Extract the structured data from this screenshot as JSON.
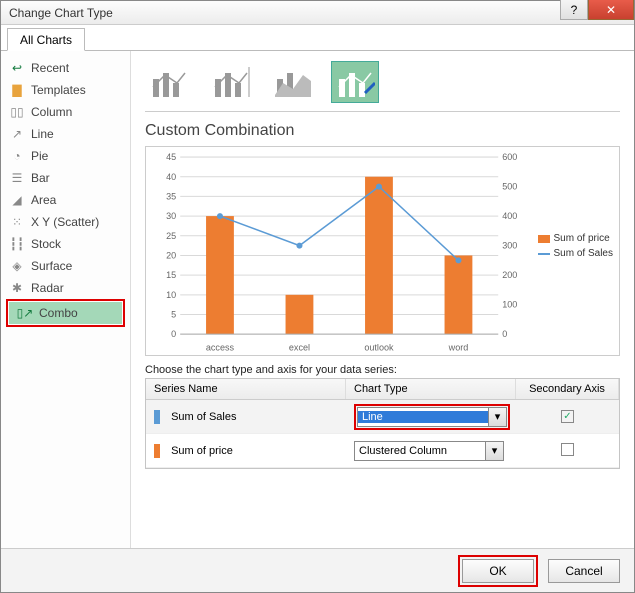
{
  "window": {
    "title": "Change Chart Type"
  },
  "tabs": {
    "allCharts": "All Charts"
  },
  "sidebar": {
    "items": [
      {
        "label": "Recent"
      },
      {
        "label": "Templates"
      },
      {
        "label": "Column"
      },
      {
        "label": "Line"
      },
      {
        "label": "Pie"
      },
      {
        "label": "Bar"
      },
      {
        "label": "Area"
      },
      {
        "label": "X Y (Scatter)"
      },
      {
        "label": "Stock"
      },
      {
        "label": "Surface"
      },
      {
        "label": "Radar"
      },
      {
        "label": "Combo"
      }
    ],
    "selected_index": 11,
    "highlighted_index": 11
  },
  "combo_thumbs": {
    "count": 4,
    "selected_index": 3
  },
  "section_title": "Custom Combination",
  "chart": {
    "type": "combo",
    "categories": [
      "access",
      "excel",
      "outlook",
      "word"
    ],
    "bar_series": {
      "name": "Sum of price",
      "values": [
        30,
        10,
        40,
        20
      ],
      "color": "#ed7d31"
    },
    "line_series": {
      "name": "Sum of Sales",
      "values": [
        400,
        300,
        500,
        250
      ],
      "color": "#5b9bd5",
      "marker": "circle"
    },
    "y_left": {
      "min": 0,
      "max": 45,
      "step": 5
    },
    "y_right": {
      "min": 0,
      "max": 600,
      "step": 100
    },
    "grid_color": "#d9d9d9",
    "background_color": "#ffffff",
    "axis_fontsize": 9,
    "category_fontsize": 9
  },
  "legend": {
    "items": [
      {
        "label": "Sum of price",
        "color": "#ed7d31",
        "kind": "bar"
      },
      {
        "label": "Sum of Sales",
        "color": "#5b9bd5",
        "kind": "line"
      }
    ]
  },
  "series_section": {
    "caption": "Choose the chart type and axis for your data series:",
    "headers": {
      "name": "Series Name",
      "type": "Chart Type",
      "secondary": "Secondary Axis"
    },
    "rows": [
      {
        "swatch": "#5b9bd5",
        "name": "Sum of Sales",
        "chart_type": "Line",
        "secondary_checked": true,
        "type_highlighted": true
      },
      {
        "swatch": "#ed7d31",
        "name": "Sum of price",
        "chart_type": "Clustered Column",
        "secondary_checked": false,
        "type_highlighted": false
      }
    ]
  },
  "footer": {
    "ok": "OK",
    "cancel": "Cancel",
    "ok_highlighted": true
  }
}
